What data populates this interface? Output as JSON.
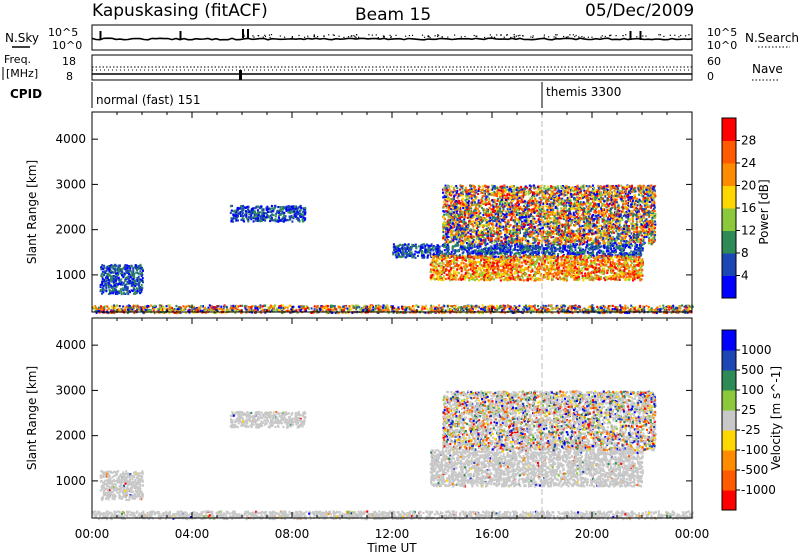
{
  "header": {
    "station": "Kapuskasing (fitACF)",
    "beam": "Beam 15",
    "date": "05/Dec/2009"
  },
  "noise_panel": {
    "left_label": "N.Sky",
    "right_label": "N.Search",
    "left_ticks": [
      "10^5",
      "10^0"
    ],
    "right_ticks": [
      "10^5",
      "10^0"
    ]
  },
  "freq_panel": {
    "left_label_1": "Freq.",
    "left_label_2": "[MHz]",
    "right_label": "Nave",
    "left_ticks": [
      "18",
      "8"
    ],
    "right_ticks": [
      "60",
      "0"
    ]
  },
  "cpid_panel": {
    "label": "CPID",
    "modes": [
      {
        "name": "normal (fast) 151",
        "start_hour": 0
      },
      {
        "name": "themis 3300",
        "start_hour": 18
      }
    ]
  },
  "x_axis": {
    "label": "Time UT",
    "ticks": [
      "00:00",
      "04:00",
      "08:00",
      "12:00",
      "16:00",
      "20:00",
      "00:00"
    ],
    "range_hours": [
      0,
      24
    ]
  },
  "chart_data": [
    {
      "type": "heatmap",
      "panel": "power",
      "ylabel": "Slant Range [km]",
      "yticks": [
        "1000",
        "2000",
        "3000",
        "4000"
      ],
      "ylim": [
        180,
        4600
      ],
      "colorbar_label": "Power [dB]",
      "colorbar_ticks": [
        "4",
        "8",
        "12",
        "16",
        "20",
        "24",
        "28"
      ],
      "colorbar_colors": [
        "#0000ff",
        "#1c46b4",
        "#2e8b57",
        "#8cc83c",
        "#ffd700",
        "#ff8c00",
        "#ff5a00",
        "#ff0000"
      ],
      "regions": [
        {
          "x": [
            0.3,
            2.0
          ],
          "y": [
            600,
            1250
          ],
          "level": "low"
        },
        {
          "x": [
            5.5,
            8.5
          ],
          "y": [
            2200,
            2550
          ],
          "level": "low"
        },
        {
          "x": [
            12.0,
            22.0
          ],
          "y": [
            1400,
            1700
          ],
          "level": "low"
        },
        {
          "x": [
            13.5,
            22.0
          ],
          "y": [
            900,
            1450
          ],
          "level": "high"
        },
        {
          "x": [
            14.0,
            22.5
          ],
          "y": [
            1700,
            3000
          ],
          "level": "mixed"
        },
        {
          "x": [
            0.0,
            24.0
          ],
          "y": [
            180,
            350
          ],
          "level": "mixed"
        }
      ]
    },
    {
      "type": "heatmap",
      "panel": "velocity",
      "ylabel": "Slant Range [km]",
      "yticks": [
        "1000",
        "2000",
        "3000",
        "4000"
      ],
      "ylim": [
        180,
        4600
      ],
      "colorbar_label": "Velocity [m s^-1]",
      "colorbar_ticks": [
        "1000",
        "500",
        "100",
        "25",
        "-25",
        "-100",
        "-500",
        "-1000"
      ],
      "colorbar_colors": [
        "#0000ff",
        "#1c46b4",
        "#2e8b57",
        "#8cc83c",
        "#c8c8c8",
        "#ffd700",
        "#ff8c00",
        "#ff5a00",
        "#ff0000"
      ],
      "regions": [
        {
          "x": [
            0.3,
            2.0
          ],
          "y": [
            600,
            1250
          ],
          "level": "ground"
        },
        {
          "x": [
            5.5,
            8.5
          ],
          "y": [
            2200,
            2550
          ],
          "level": "ground"
        },
        {
          "x": [
            13.5,
            22.0
          ],
          "y": [
            900,
            1700
          ],
          "level": "ground"
        },
        {
          "x": [
            14.0,
            22.5
          ],
          "y": [
            1700,
            3000
          ],
          "level": "mixed"
        },
        {
          "x": [
            0.0,
            24.0
          ],
          "y": [
            180,
            350
          ],
          "level": "ground"
        }
      ]
    }
  ]
}
